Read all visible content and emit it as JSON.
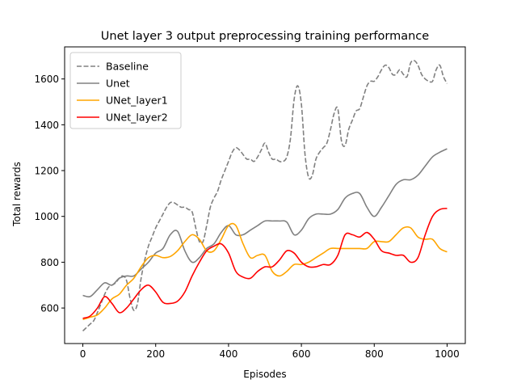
{
  "chart_data": {
    "type": "line",
    "title": "Unet layer 3 output preprocessing training performance",
    "xlabel": "Episodes",
    "ylabel": "Total rewards",
    "xlim": [
      -50,
      1050
    ],
    "ylim": [
      445,
      1740
    ],
    "xticks": [
      0,
      200,
      400,
      600,
      800,
      1000
    ],
    "yticks": [
      600,
      800,
      1000,
      1200,
      1400,
      1600
    ],
    "grid": false,
    "legend_position": "top-left",
    "series": [
      {
        "name": "Baseline",
        "color": "#808080",
        "dash": "dashed",
        "x": [
          0,
          10,
          20,
          30,
          40,
          50,
          60,
          70,
          80,
          90,
          100,
          110,
          120,
          130,
          140,
          150,
          160,
          170,
          180,
          190,
          200,
          210,
          220,
          230,
          240,
          250,
          260,
          270,
          280,
          290,
          300,
          310,
          320,
          330,
          340,
          350,
          360,
          370,
          380,
          390,
          400,
          410,
          420,
          430,
          440,
          450,
          460,
          470,
          480,
          490,
          500,
          510,
          520,
          530,
          540,
          550,
          560,
          570,
          580,
          590,
          600,
          610,
          620,
          630,
          640,
          650,
          660,
          670,
          680,
          690,
          700,
          710,
          720,
          730,
          740,
          750,
          760,
          770,
          780,
          790,
          800,
          810,
          820,
          830,
          840,
          850,
          860,
          870,
          880,
          890,
          900,
          910,
          920,
          930,
          940,
          950,
          960,
          970,
          980,
          990,
          1000
        ],
        "y": [
          500,
          515,
          530,
          545,
          580,
          620,
          660,
          690,
          700,
          710,
          730,
          740,
          720,
          640,
          590,
          620,
          730,
          810,
          870,
          910,
          950,
          980,
          1010,
          1040,
          1060,
          1060,
          1050,
          1040,
          1040,
          1030,
          1020,
          950,
          890,
          890,
          960,
          1040,
          1080,
          1110,
          1160,
          1200,
          1240,
          1280,
          1300,
          1290,
          1270,
          1250,
          1250,
          1240,
          1260,
          1290,
          1320,
          1280,
          1250,
          1250,
          1240,
          1240,
          1260,
          1340,
          1510,
          1570,
          1490,
          1270,
          1170,
          1180,
          1250,
          1280,
          1300,
          1320,
          1380,
          1450,
          1470,
          1330,
          1310,
          1380,
          1420,
          1460,
          1470,
          1520,
          1570,
          1590,
          1590,
          1610,
          1640,
          1660,
          1650,
          1620,
          1620,
          1640,
          1620,
          1610,
          1670,
          1680,
          1660,
          1620,
          1600,
          1590,
          1590,
          1640,
          1660,
          1610,
          1580
        ]
      },
      {
        "name": "Unet",
        "color": "#808080",
        "dash": "solid",
        "x": [
          0,
          20,
          40,
          60,
          80,
          100,
          120,
          140,
          160,
          180,
          200,
          220,
          240,
          260,
          280,
          300,
          320,
          340,
          360,
          380,
          400,
          420,
          440,
          460,
          480,
          500,
          520,
          540,
          560,
          580,
          600,
          620,
          640,
          660,
          680,
          700,
          720,
          740,
          760,
          780,
          800,
          820,
          840,
          860,
          880,
          900,
          920,
          940,
          960,
          980,
          1000
        ],
        "y": [
          655,
          650,
          680,
          710,
          700,
          730,
          740,
          740,
          770,
          800,
          840,
          860,
          920,
          935,
          850,
          800,
          820,
          860,
          880,
          930,
          960,
          920,
          920,
          940,
          960,
          980,
          980,
          980,
          975,
          920,
          940,
          990,
          1010,
          1010,
          1010,
          1030,
          1080,
          1100,
          1100,
          1040,
          1000,
          1040,
          1090,
          1140,
          1160,
          1160,
          1180,
          1220,
          1260,
          1280,
          1295
        ]
      },
      {
        "name": "UNet_layer1",
        "color": "#ffa500",
        "dash": "solid",
        "x": [
          0,
          20,
          40,
          60,
          80,
          100,
          120,
          140,
          160,
          180,
          200,
          220,
          240,
          260,
          280,
          300,
          320,
          340,
          360,
          380,
          400,
          420,
          440,
          460,
          480,
          500,
          520,
          540,
          560,
          580,
          600,
          620,
          640,
          660,
          680,
          700,
          720,
          740,
          760,
          780,
          800,
          820,
          840,
          860,
          880,
          900,
          920,
          940,
          960,
          980,
          1000
        ],
        "y": [
          550,
          560,
          570,
          600,
          640,
          660,
          700,
          730,
          780,
          820,
          830,
          820,
          825,
          850,
          890,
          920,
          900,
          850,
          850,
          900,
          960,
          960,
          880,
          820,
          830,
          830,
          760,
          740,
          760,
          790,
          790,
          800,
          820,
          840,
          860,
          860,
          860,
          860,
          860,
          860,
          890,
          890,
          890,
          920,
          950,
          950,
          910,
          900,
          900,
          860,
          845
        ]
      },
      {
        "name": "UNet_layer2",
        "color": "#ff0000",
        "dash": "solid",
        "x": [
          0,
          20,
          40,
          60,
          80,
          100,
          120,
          140,
          160,
          180,
          200,
          220,
          240,
          260,
          280,
          300,
          320,
          340,
          360,
          380,
          400,
          420,
          440,
          460,
          480,
          500,
          520,
          540,
          560,
          580,
          600,
          620,
          640,
          660,
          680,
          700,
          720,
          740,
          760,
          780,
          800,
          820,
          840,
          860,
          880,
          900,
          920,
          940,
          960,
          980,
          1000
        ],
        "y": [
          555,
          565,
          600,
          650,
          620,
          580,
          600,
          640,
          680,
          700,
          670,
          625,
          620,
          630,
          670,
          740,
          800,
          850,
          870,
          880,
          840,
          760,
          735,
          730,
          760,
          780,
          780,
          810,
          850,
          840,
          800,
          780,
          780,
          790,
          790,
          830,
          920,
          920,
          910,
          930,
          900,
          850,
          840,
          830,
          830,
          800,
          820,
          920,
          1000,
          1030,
          1035
        ]
      }
    ]
  }
}
